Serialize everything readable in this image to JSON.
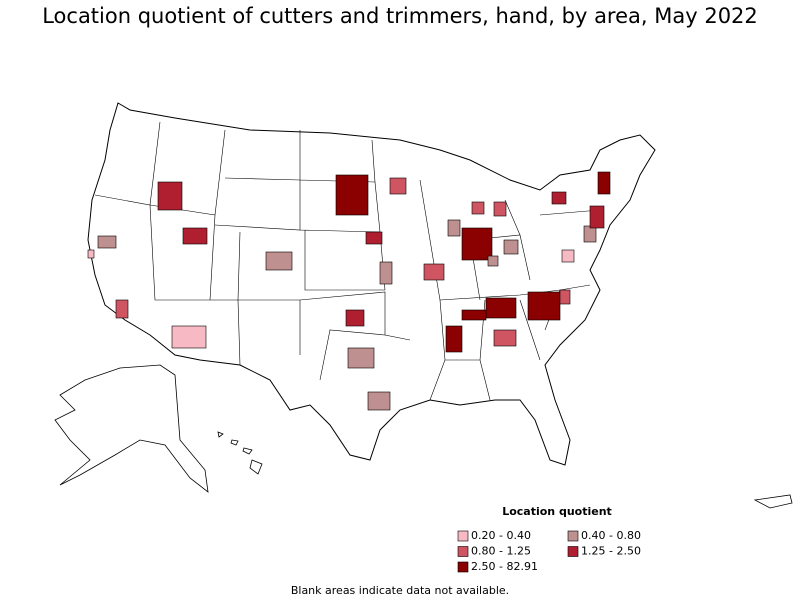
{
  "title": "Location quotient of cutters and trimmers, hand, by area, May 2022",
  "legend": {
    "title": "Location quotient",
    "items": [
      {
        "label": "0.20 - 0.40",
        "color": "#f7b9c4"
      },
      {
        "label": "0.40 - 0.80",
        "color": "#bf9090"
      },
      {
        "label": "0.80 - 1.25",
        "color": "#cf5563"
      },
      {
        "label": "1.25 - 2.50",
        "color": "#b01f30"
      },
      {
        "label": "2.50 - 82.91",
        "color": "#8b0000"
      }
    ]
  },
  "footnote": "Blank areas indicate data not available."
}
